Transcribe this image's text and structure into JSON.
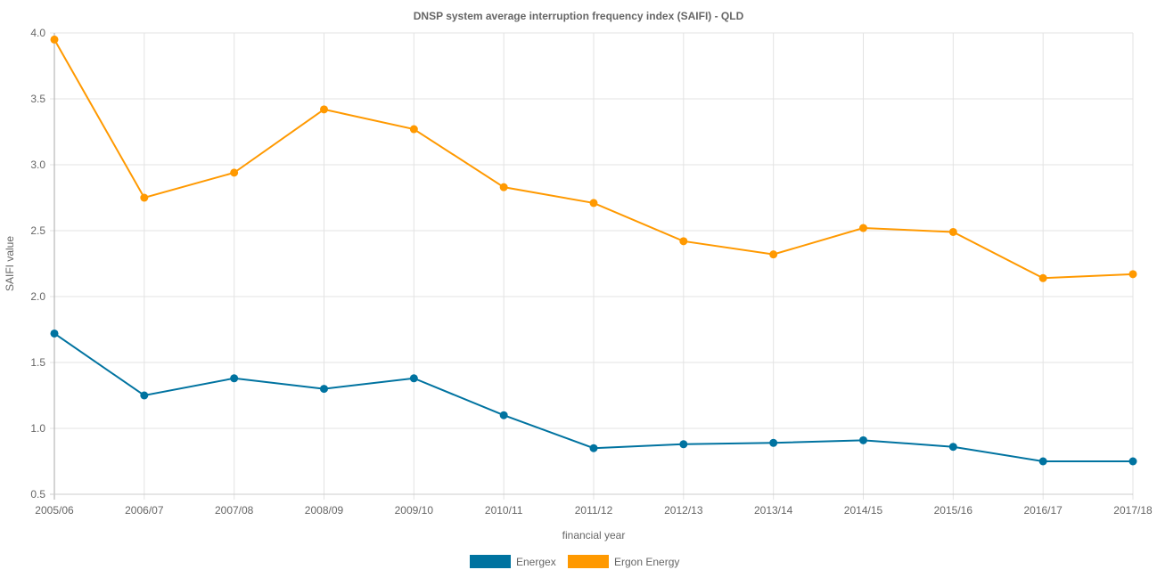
{
  "chart_data": {
    "type": "line",
    "title": "DNSP system average interruption frequency index (SAIFI) - QLD",
    "xlabel": "financial year",
    "ylabel": "SAIFI value",
    "ylim": [
      0.5,
      4.0
    ],
    "yticks": [
      "0.5",
      "1.0",
      "1.5",
      "2.0",
      "2.5",
      "3.0",
      "3.5",
      "4.0"
    ],
    "ytick_values": [
      0.5,
      1.0,
      1.5,
      2.0,
      2.5,
      3.0,
      3.5,
      4.0
    ],
    "grid": true,
    "legend_position": "bottom",
    "categories": [
      "2005/06",
      "2006/07",
      "2007/08",
      "2008/09",
      "2009/10",
      "2010/11",
      "2011/12",
      "2012/13",
      "2013/14",
      "2014/15",
      "2015/16",
      "2016/17",
      "2017/18"
    ],
    "series": [
      {
        "name": "Energex",
        "color": "#0073a0",
        "values": [
          1.72,
          1.25,
          1.38,
          1.3,
          1.38,
          1.1,
          0.85,
          0.88,
          0.89,
          0.91,
          0.86,
          0.75,
          0.75
        ]
      },
      {
        "name": "Ergon Energy",
        "color": "#ff9900",
        "values": [
          3.95,
          2.75,
          2.94,
          3.42,
          3.27,
          2.83,
          2.71,
          2.42,
          2.32,
          2.52,
          2.49,
          2.14,
          2.17
        ]
      }
    ]
  }
}
